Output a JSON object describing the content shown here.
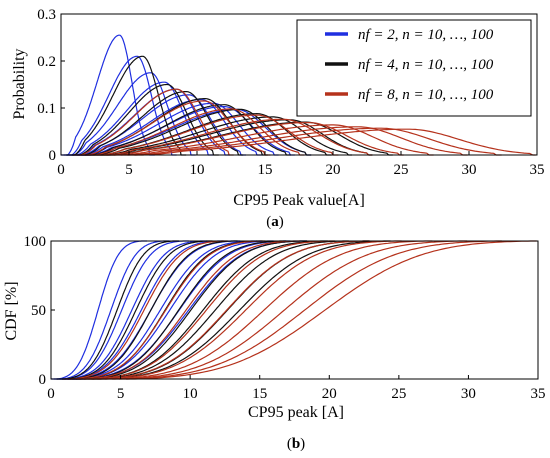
{
  "figure": {
    "panels": [
      {
        "id": "a",
        "label": "(a)",
        "chart_type": "line",
        "xlabel": "CP95 Peak value[A]",
        "ylabel": "Probability",
        "xlim": [
          0,
          35
        ],
        "ylim": [
          0,
          0.3
        ],
        "xticks": [
          "0",
          "5",
          "10",
          "15",
          "20",
          "25",
          "30",
          "35"
        ],
        "yticks": [
          "0",
          "0.1",
          "0.2",
          "0.3"
        ],
        "grid": false,
        "legend_position": "top-right"
      },
      {
        "id": "b",
        "label": "(b)",
        "chart_type": "line",
        "xlabel": "CP95 peak [A]",
        "ylabel": "CDF [%]",
        "xlim": [
          0,
          35
        ],
        "ylim": [
          0,
          100
        ],
        "xticks": [
          "0",
          "5",
          "10",
          "15",
          "20",
          "25",
          "30",
          "35"
        ],
        "yticks": [
          "0",
          "50",
          "100"
        ],
        "grid": false
      }
    ]
  },
  "legend": {
    "items": [
      {
        "nf_text": "nf",
        "rest_text": " = 2, n = 10, …, 100",
        "color": "#1f2fe0"
      },
      {
        "nf_text": "nf",
        "rest_text": " = 4, n = 10, …, 100",
        "color": "#111111"
      },
      {
        "nf_text": "nf",
        "rest_text": " = 8, n = 10, …, 100",
        "color": "#b5321c"
      }
    ]
  },
  "chart_data": [
    {
      "type": "line",
      "panel": "a",
      "xlabel": "CP95 Peak value[A]",
      "ylabel": "Probability",
      "xlim": [
        0,
        35
      ],
      "ylim": [
        0,
        0.3
      ],
      "series": [
        {
          "name": "nf = 2, n = 10, …, 100",
          "color": "#1f2fe0",
          "curves": [
            {
              "start": 0.5,
              "peak_x": 4.3,
              "end": 6.5,
              "peak_y": 0.255
            },
            {
              "start": 0.8,
              "peak_x": 5.6,
              "end": 8.1,
              "peak_y": 0.21
            },
            {
              "start": 1.0,
              "peak_x": 6.6,
              "end": 9.5,
              "peak_y": 0.175
            },
            {
              "start": 1.2,
              "peak_x": 7.6,
              "end": 10.8,
              "peak_y": 0.155
            },
            {
              "start": 1.4,
              "peak_x": 8.5,
              "end": 12.0,
              "peak_y": 0.14
            },
            {
              "start": 1.6,
              "peak_x": 9.4,
              "end": 13.2,
              "peak_y": 0.128
            },
            {
              "start": 1.8,
              "peak_x": 10.3,
              "end": 14.4,
              "peak_y": 0.118
            },
            {
              "start": 2.0,
              "peak_x": 11.2,
              "end": 15.6,
              "peak_y": 0.11
            },
            {
              "start": 2.2,
              "peak_x": 12.0,
              "end": 16.8,
              "peak_y": 0.103
            },
            {
              "start": 2.4,
              "peak_x": 12.9,
              "end": 18.0,
              "peak_y": 0.097
            }
          ]
        },
        {
          "name": "nf = 4, n = 10, …, 100",
          "color": "#111111",
          "curves": [
            {
              "start": 1.0,
              "peak_x": 6.0,
              "end": 8.8,
              "peak_y": 0.21
            },
            {
              "start": 1.4,
              "peak_x": 7.8,
              "end": 11.2,
              "peak_y": 0.15
            },
            {
              "start": 1.8,
              "peak_x": 9.2,
              "end": 13.0,
              "peak_y": 0.135
            },
            {
              "start": 2.1,
              "peak_x": 10.6,
              "end": 14.8,
              "peak_y": 0.12
            },
            {
              "start": 2.4,
              "peak_x": 12.0,
              "end": 16.5,
              "peak_y": 0.107
            },
            {
              "start": 2.7,
              "peak_x": 13.2,
              "end": 18.0,
              "peak_y": 0.097
            },
            {
              "start": 3.0,
              "peak_x": 14.4,
              "end": 19.5,
              "peak_y": 0.088
            },
            {
              "start": 3.3,
              "peak_x": 15.6,
              "end": 21.0,
              "peak_y": 0.081
            },
            {
              "start": 3.6,
              "peak_x": 16.8,
              "end": 22.5,
              "peak_y": 0.075
            },
            {
              "start": 3.9,
              "peak_x": 18.0,
              "end": 24.0,
              "peak_y": 0.07
            }
          ]
        },
        {
          "name": "nf = 8, n = 10, …, 100",
          "color": "#b5321c",
          "curves": [
            {
              "start": 1.5,
              "peak_x": 8.5,
              "end": 12.3,
              "peak_y": 0.14
            },
            {
              "start": 2.0,
              "peak_x": 10.5,
              "end": 15.0,
              "peak_y": 0.115
            },
            {
              "start": 2.5,
              "peak_x": 12.5,
              "end": 17.5,
              "peak_y": 0.098
            },
            {
              "start": 3.0,
              "peak_x": 14.4,
              "end": 20.0,
              "peak_y": 0.085
            },
            {
              "start": 3.5,
              "peak_x": 16.3,
              "end": 22.5,
              "peak_y": 0.076
            },
            {
              "start": 4.0,
              "peak_x": 18.2,
              "end": 24.8,
              "peak_y": 0.069
            },
            {
              "start": 4.5,
              "peak_x": 20.0,
              "end": 27.0,
              "peak_y": 0.064
            },
            {
              "start": 5.0,
              "peak_x": 21.8,
              "end": 29.5,
              "peak_y": 0.06
            },
            {
              "start": 5.5,
              "peak_x": 23.5,
              "end": 32.0,
              "peak_y": 0.057
            },
            {
              "start": 6.0,
              "peak_x": 25.5,
              "end": 34.5,
              "peak_y": 0.055
            }
          ]
        }
      ]
    },
    {
      "type": "line",
      "panel": "b",
      "xlabel": "CP95 peak [A]",
      "ylabel": "CDF [%]",
      "xlim": [
        0,
        35
      ],
      "ylim": [
        0,
        100
      ],
      "series": [
        {
          "name": "nf = 2, n = 10, …, 100",
          "color": "#1f2fe0",
          "curves": [
            {
              "start": 0.5,
              "end": 6.5
            },
            {
              "start": 0.8,
              "end": 8.1
            },
            {
              "start": 1.0,
              "end": 9.5
            },
            {
              "start": 1.2,
              "end": 10.8
            },
            {
              "start": 1.4,
              "end": 12.0
            },
            {
              "start": 1.6,
              "end": 13.2
            },
            {
              "start": 1.8,
              "end": 14.4
            },
            {
              "start": 2.0,
              "end": 15.6
            },
            {
              "start": 2.2,
              "end": 16.8
            },
            {
              "start": 2.4,
              "end": 18.0
            }
          ]
        },
        {
          "name": "nf = 4, n = 10, …, 100",
          "color": "#111111",
          "curves": [
            {
              "start": 1.0,
              "end": 8.8
            },
            {
              "start": 1.4,
              "end": 11.2
            },
            {
              "start": 1.8,
              "end": 13.0
            },
            {
              "start": 2.1,
              "end": 14.8
            },
            {
              "start": 2.4,
              "end": 16.5
            },
            {
              "start": 2.7,
              "end": 18.0
            },
            {
              "start": 3.0,
              "end": 19.5
            },
            {
              "start": 3.3,
              "end": 21.0
            },
            {
              "start": 3.6,
              "end": 22.5
            },
            {
              "start": 3.9,
              "end": 24.0
            }
          ]
        },
        {
          "name": "nf = 8, n = 10, …, 100",
          "color": "#b5321c",
          "curves": [
            {
              "start": 1.5,
              "end": 12.3
            },
            {
              "start": 2.0,
              "end": 15.0
            },
            {
              "start": 2.5,
              "end": 17.5
            },
            {
              "start": 3.0,
              "end": 20.0
            },
            {
              "start": 3.5,
              "end": 22.5
            },
            {
              "start": 4.0,
              "end": 24.8
            },
            {
              "start": 4.5,
              "end": 27.0
            },
            {
              "start": 5.0,
              "end": 29.5
            },
            {
              "start": 5.5,
              "end": 32.0
            },
            {
              "start": 6.0,
              "end": 34.5
            }
          ]
        }
      ]
    }
  ]
}
